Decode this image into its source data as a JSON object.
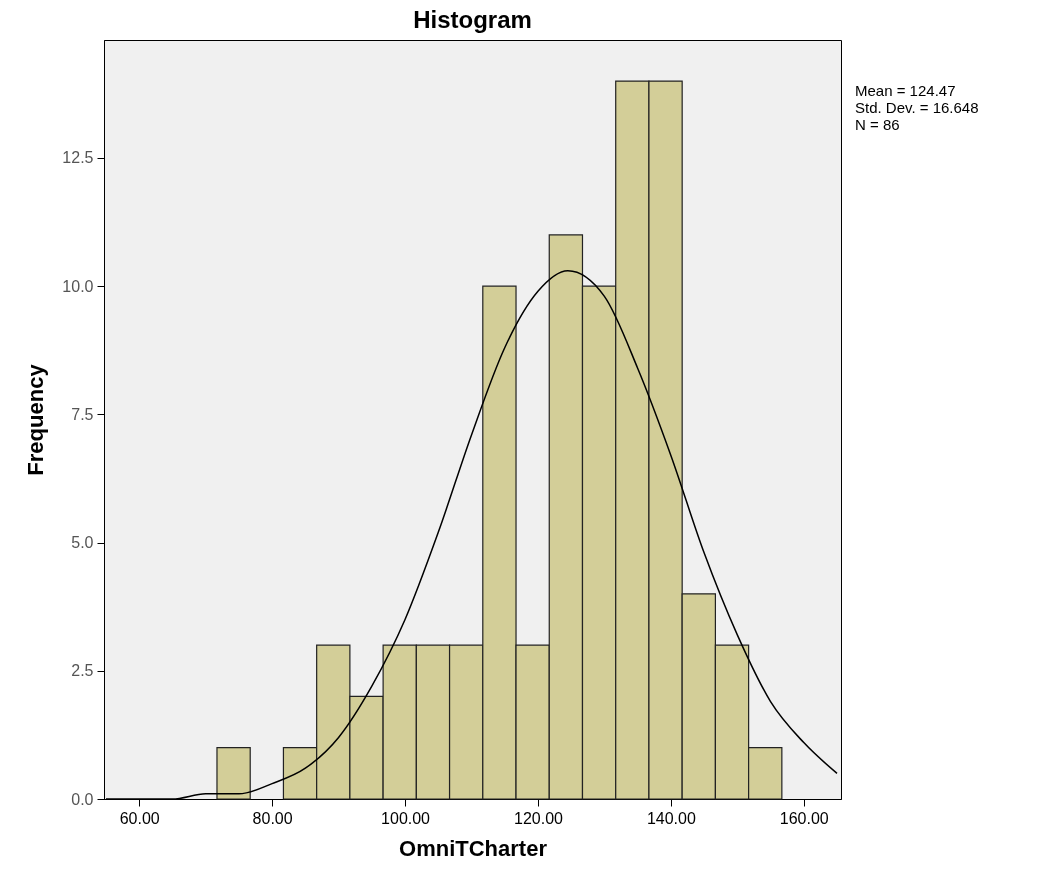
{
  "chart_data": {
    "type": "histogram",
    "title": "Histogram",
    "xlabel": "OmniTCharter",
    "ylabel": "Frequency",
    "bins": [
      71.7,
      76.7,
      81.7,
      86.7,
      91.7,
      96.7,
      101.7,
      106.7,
      111.7,
      116.7,
      121.7,
      126.7,
      131.7,
      136.7,
      141.7,
      146.7,
      151.7,
      156.7
    ],
    "values": [
      1,
      0,
      1,
      3,
      2,
      3,
      3,
      3,
      10,
      3,
      11,
      10,
      14,
      14,
      4,
      3,
      1
    ],
    "color": "#d3ce98",
    "series": [
      {
        "type": "line",
        "color": "#000000",
        "x": [
          55,
          60,
          65,
          70,
          75,
          80,
          85,
          90,
          95,
          100,
          105,
          110,
          115,
          120,
          124.5,
          130,
          135,
          140,
          145,
          150,
          155,
          160,
          165
        ],
        "values": [
          0,
          0,
          0,
          0.1,
          0.1,
          0.3,
          0.6,
          1.2,
          2.2,
          3.5,
          5.2,
          7.1,
          8.8,
          9.9,
          10.3,
          9.8,
          8.4,
          6.7,
          4.8,
          3.2,
          1.9,
          1.1,
          0.5
        ]
      }
    ],
    "xlim": [
      54.7,
      165.6
    ],
    "xticks": [
      {
        "value": 60,
        "label": "60.00"
      },
      {
        "value": 80,
        "label": "80.00"
      },
      {
        "value": 100,
        "label": "100.00"
      },
      {
        "value": 120,
        "label": "120.00"
      },
      {
        "value": 140,
        "label": "140.00"
      },
      {
        "value": 160,
        "label": "160.00"
      }
    ],
    "ylim": [
      0,
      14.8
    ],
    "yticks": [
      {
        "value": 0,
        "label": "0.0"
      },
      {
        "value": 2.5,
        "label": "2.5"
      },
      {
        "value": 5,
        "label": "5.0"
      },
      {
        "value": 7.5,
        "label": "7.5"
      },
      {
        "value": 10,
        "label": "10.0"
      },
      {
        "value": 12.5,
        "label": "12.5"
      }
    ],
    "annotations": [
      "Mean = 124.47",
      "Std. Dev. = 16.648",
      "N = 86"
    ],
    "grid": false
  }
}
